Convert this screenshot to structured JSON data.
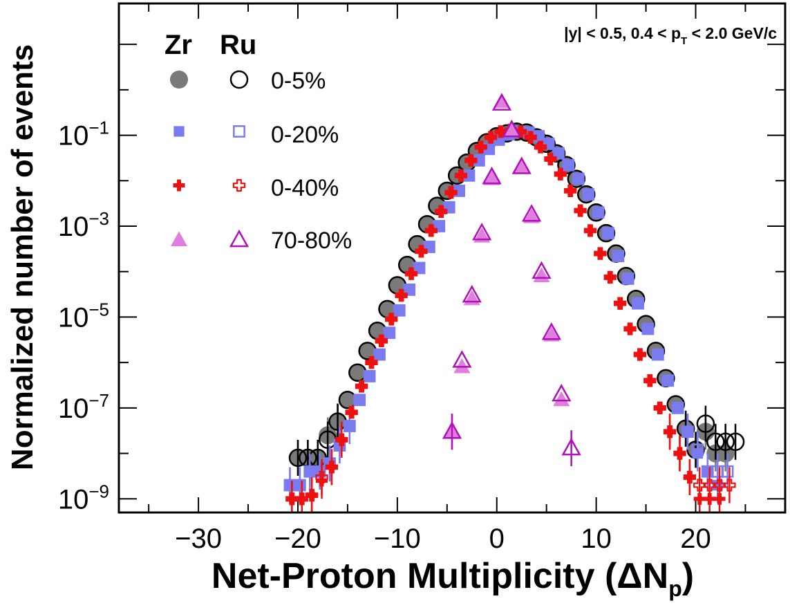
{
  "chart_data": {
    "type": "scatter",
    "title": "",
    "xlabel": "Net-Proton Multiplicity (ΔN",
    "xlabel_sub": "p",
    "xlabel_end": ")",
    "ylabel": "Normalized number of events",
    "xlim": [
      -38,
      29
    ],
    "ylim_log10": [
      -9.3,
      1.9
    ],
    "yscale": "log",
    "x_ticks": [
      -30,
      -20,
      -10,
      0,
      10,
      20
    ],
    "x_tick_labels": [
      "−30",
      "−20",
      "−10",
      "0",
      "10",
      "20"
    ],
    "y_ticks_log10": [
      -1,
      -3,
      -5,
      -7,
      -9
    ],
    "y_tick_base": "10",
    "y_tick_exponents": [
      "−1",
      "−3",
      "−5",
      "−7",
      "−9"
    ],
    "annotation": {
      "text_main": "|y| < 0.5, 0.4 < p",
      "text_sub": "T",
      "text_end": " < 2.0 GeV/c"
    },
    "legend": {
      "placement": "top-left",
      "col_headers": [
        "Zr",
        "Ru"
      ],
      "entries": [
        "0-5%",
        "0-20%",
        "0-40%",
        "70-80%"
      ]
    },
    "colors": {
      "c0_5": "#7a7a7a",
      "c0_20": "#7b7bf0",
      "c0_40": "#ee1111",
      "c70_80_zr": "#e07ee0",
      "c70_80_ru": "#b010b8"
    },
    "series": [
      {
        "name": "Zr 0-5%",
        "marker": "filled-circle",
        "color": "#7a7a7a",
        "x": [
          -20,
          -19,
          -18,
          -17,
          -16,
          -15,
          -14,
          -13,
          -12,
          -11,
          -10,
          -9,
          -8,
          -7,
          -6,
          -5,
          -4,
          -3,
          -2,
          -1,
          0,
          1,
          2,
          3,
          4,
          5,
          6,
          7,
          8,
          9,
          10,
          11,
          12,
          13,
          14,
          15,
          16,
          17,
          18,
          19,
          20,
          21,
          22,
          23
        ],
        "y": [
          8e-09,
          8e-09,
          8e-09,
          2.5e-08,
          5e-08,
          1.5e-07,
          6e-07,
          1.8e-06,
          5e-06,
          1.5e-05,
          5e-05,
          0.00014,
          0.0004,
          0.0011,
          0.0028,
          0.006,
          0.013,
          0.025,
          0.045,
          0.07,
          0.095,
          0.11,
          0.12,
          0.115,
          0.09,
          0.065,
          0.04,
          0.022,
          0.011,
          0.005,
          0.002,
          0.0007,
          0.00025,
          8e-05,
          2.5e-05,
          7e-06,
          1.8e-06,
          4.5e-07,
          1.2e-07,
          3.5e-08,
          1.2e-08,
          3e-08,
          1e-08,
          1e-08
        ]
      },
      {
        "name": "Ru 0-5%",
        "marker": "open-circle",
        "color": "#000000",
        "x": [
          -20,
          -19,
          -18,
          -17,
          -16,
          -15,
          -14,
          -13,
          -12,
          -11,
          -10,
          -9,
          -8,
          -7,
          -6,
          -5,
          -4,
          -3,
          -2,
          -1,
          0,
          1,
          2,
          3,
          4,
          5,
          6,
          7,
          8,
          9,
          10,
          11,
          12,
          13,
          14,
          15,
          16,
          17,
          18,
          19,
          20,
          21,
          22,
          23,
          24
        ],
        "y": [
          8e-09,
          8e-09,
          8e-09,
          2e-08,
          5e-08,
          1.5e-07,
          6e-07,
          1.8e-06,
          5e-06,
          1.5e-05,
          5e-05,
          0.00014,
          0.0004,
          0.0011,
          0.0028,
          0.006,
          0.013,
          0.025,
          0.045,
          0.07,
          0.095,
          0.11,
          0.12,
          0.115,
          0.09,
          0.065,
          0.04,
          0.022,
          0.011,
          0.005,
          0.002,
          0.0007,
          0.00025,
          8e-05,
          2.5e-05,
          7e-06,
          1.8e-06,
          4.5e-07,
          1.2e-07,
          3.5e-08,
          1.2e-08,
          4.5e-08,
          1.8e-08,
          1.8e-08,
          1.8e-08
        ]
      },
      {
        "name": "Zr 0-20%",
        "marker": "filled-square",
        "color": "#7b7bf0",
        "x": [
          -21,
          -20,
          -19,
          -18,
          -17,
          -16,
          -15,
          -14,
          -13,
          -12,
          -11,
          -10,
          -9,
          -8,
          -7,
          -6,
          -5,
          -4,
          -3,
          -2,
          -1,
          0,
          1,
          2,
          3,
          4,
          5,
          6,
          7,
          8,
          9,
          10,
          11,
          12,
          13,
          14,
          15,
          16,
          17,
          18,
          19,
          20,
          21,
          22
        ],
        "y": [
          2e-09,
          2e-09,
          4e-09,
          4e-09,
          6e-09,
          1.5e-08,
          4e-08,
          1.5e-07,
          5e-07,
          1.5e-06,
          4.5e-06,
          1.4e-05,
          4e-05,
          0.00012,
          0.00035,
          0.001,
          0.0026,
          0.006,
          0.013,
          0.028,
          0.05,
          0.08,
          0.105,
          0.12,
          0.115,
          0.095,
          0.065,
          0.04,
          0.022,
          0.011,
          0.005,
          0.002,
          0.0007,
          0.00022,
          7e-05,
          2e-05,
          5.5e-06,
          1.5e-06,
          4e-07,
          1e-07,
          3e-08,
          1e-08,
          4e-09,
          2e-09
        ]
      },
      {
        "name": "Ru 0-20%",
        "marker": "open-square",
        "color": "#7b7bf0",
        "x": [
          -21,
          -20,
          -19,
          -18,
          -17,
          -16,
          -15,
          -14,
          -13,
          -12,
          -11,
          -10,
          -9,
          -8,
          -7,
          -6,
          -5,
          -4,
          -3,
          -2,
          -1,
          0,
          1,
          2,
          3,
          4,
          5,
          6,
          7,
          8,
          9,
          10,
          11,
          12,
          13,
          14,
          15,
          16,
          17,
          18,
          19,
          20,
          21,
          22,
          23
        ],
        "y": [
          2e-09,
          2e-09,
          4e-09,
          4e-09,
          6e-09,
          1.5e-08,
          4e-08,
          1.5e-07,
          5e-07,
          1.5e-06,
          4.5e-06,
          1.4e-05,
          4e-05,
          0.00012,
          0.00035,
          0.001,
          0.0026,
          0.006,
          0.013,
          0.028,
          0.05,
          0.08,
          0.105,
          0.12,
          0.115,
          0.095,
          0.065,
          0.04,
          0.022,
          0.011,
          0.005,
          0.002,
          0.0007,
          0.00022,
          7e-05,
          2e-05,
          5.5e-06,
          1.5e-06,
          4e-07,
          1e-07,
          3e-08,
          1.2e-08,
          4e-09,
          4e-09,
          4e-09
        ]
      },
      {
        "name": "Zr 0-40%",
        "marker": "filled-cross",
        "color": "#ee1111",
        "x": [
          -21,
          -20,
          -19,
          -18,
          -17,
          -16,
          -15,
          -14,
          -13,
          -12,
          -11,
          -10,
          -9,
          -8,
          -7,
          -6,
          -5,
          -4,
          -3,
          -2,
          -1,
          0,
          1,
          2,
          3,
          4,
          5,
          6,
          7,
          8,
          9,
          10,
          11,
          12,
          13,
          14,
          15,
          16,
          17,
          18,
          19,
          20,
          21,
          22
        ],
        "y": [
          1e-09,
          1e-09,
          1.2e-09,
          2.5e-09,
          5e-09,
          2e-08,
          8e-08,
          3e-07,
          1e-06,
          3e-06,
          9e-06,
          3e-05,
          9e-05,
          0.00028,
          0.0008,
          0.0021,
          0.0055,
          0.013,
          0.028,
          0.055,
          0.09,
          0.12,
          0.13,
          0.12,
          0.09,
          0.055,
          0.03,
          0.014,
          0.006,
          0.0022,
          0.0008,
          0.00025,
          7.5e-05,
          2e-05,
          5.5e-06,
          1.5e-06,
          4e-07,
          1e-07,
          3e-08,
          1e-08,
          3e-09,
          1e-09,
          1e-09,
          1e-09
        ]
      },
      {
        "name": "Ru 0-40%",
        "marker": "open-cross",
        "color": "#ee1111",
        "x": [
          -21,
          -20,
          -19,
          -18,
          -17,
          -16,
          -15,
          -14,
          -13,
          -12,
          -11,
          -10,
          -9,
          -8,
          -7,
          -6,
          -5,
          -4,
          -3,
          -2,
          -1,
          0,
          1,
          2,
          3,
          4,
          5,
          6,
          7,
          8,
          9,
          10,
          11,
          12,
          13,
          14,
          15,
          16,
          17,
          18,
          19,
          20,
          21,
          22,
          23
        ],
        "y": [
          1e-09,
          1e-09,
          1.2e-09,
          3e-09,
          5e-09,
          2e-08,
          8e-08,
          3e-07,
          1e-06,
          3e-06,
          9e-06,
          3e-05,
          9e-05,
          0.00028,
          0.0008,
          0.0021,
          0.0055,
          0.013,
          0.028,
          0.055,
          0.09,
          0.12,
          0.13,
          0.12,
          0.09,
          0.055,
          0.03,
          0.014,
          0.006,
          0.0022,
          0.0008,
          0.00025,
          7.5e-05,
          2e-05,
          5.5e-06,
          1.5e-06,
          4e-07,
          1e-07,
          3e-08,
          1e-08,
          3e-09,
          2e-09,
          2e-09,
          2e-09,
          2e-09
        ]
      },
      {
        "name": "Zr 70-80%",
        "marker": "filled-triangle",
        "color": "#e07ee0",
        "x": [
          -5,
          -4,
          -3,
          -2,
          -1,
          0,
          1,
          2,
          3,
          4,
          5,
          6
        ],
        "y": [
          3e-08,
          8e-07,
          2.5e-05,
          0.0006,
          0.011,
          0.55,
          0.13,
          0.02,
          0.0016,
          8e-05,
          4e-06,
          1.5e-07
        ]
      },
      {
        "name": "Ru 70-80%",
        "marker": "open-triangle",
        "color": "#b010b8",
        "x": [
          -5,
          -4,
          -3,
          -2,
          -1,
          0,
          1,
          2,
          3,
          4,
          5,
          6,
          7
        ],
        "y": [
          3e-08,
          1.1e-06,
          3e-05,
          0.0007,
          0.012,
          0.5,
          0.13,
          0.02,
          0.0018,
          0.0001,
          4.5e-06,
          2e-07,
          1.3e-08
        ]
      }
    ]
  }
}
